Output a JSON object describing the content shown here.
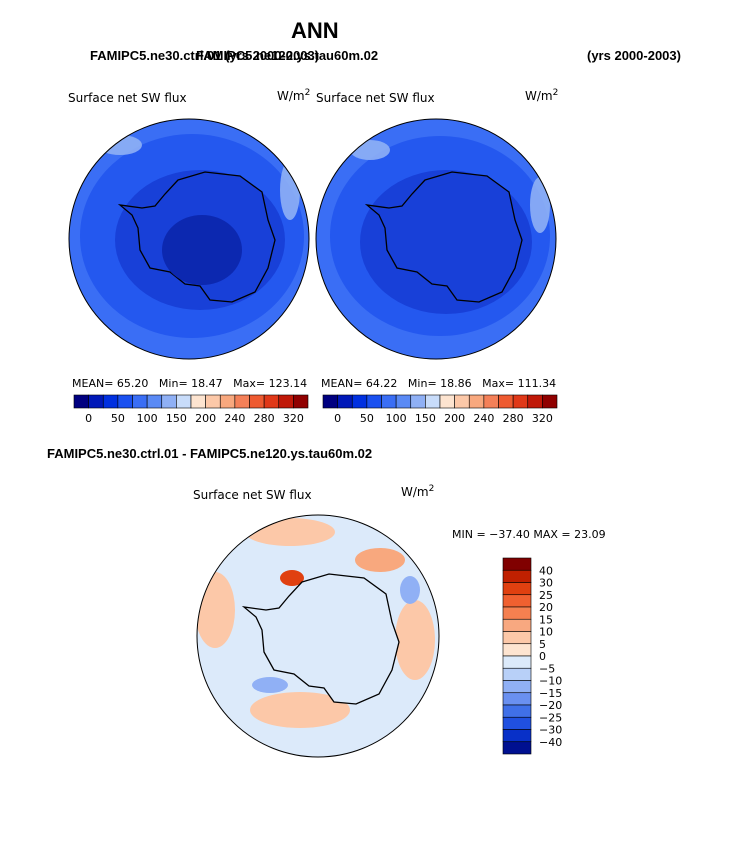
{
  "title": "ANN",
  "top_left_case": "FAMIPC5.ne30.ctrl.01",
  "top_left_years": "(yrs 2000-2003)",
  "top_right_case": "FAMIPC5.ne120.ys.tau60m.02",
  "top_right_years": "(yrs 2000-2003)",
  "diff_title": "FAMIPC5.ne30.ctrl.01 - FAMIPC5.ne120.ys.tau60m.02",
  "panels": [
    {
      "variable": "Surface net SW flux",
      "units_base": "W/m",
      "units_exp": "2",
      "stats": {
        "mean_label": "MEAN=",
        "mean": "65.20",
        "min_label": "Min=",
        "min": "18.47",
        "max_label": "Max=",
        "max": "123.14"
      }
    },
    {
      "variable": "Surface net SW flux",
      "units_base": "W/m",
      "units_exp": "2",
      "stats": {
        "mean_label": "MEAN=",
        "mean": "64.22",
        "min_label": "Min=",
        "min": "18.86",
        "max_label": "Max=",
        "max": "111.34"
      }
    },
    {
      "variable": "Surface net SW flux",
      "units_base": "W/m",
      "units_exp": "2",
      "stats_line": "MIN = −37.40  MAX =  23.09"
    }
  ],
  "colorbar_abs": {
    "colors": [
      "#000080",
      "#0018b8",
      "#0030e0",
      "#1a50f0",
      "#3a6ef5",
      "#5a8af5",
      "#8fb0f5",
      "#c8dcfa",
      "#fde4d0",
      "#fcc8a8",
      "#f8a87e",
      "#f48058",
      "#ee5a30",
      "#e03818",
      "#c01808",
      "#900000"
    ],
    "tick_labels": [
      "0",
      "50",
      "100",
      "150",
      "200",
      "240",
      "280",
      "320"
    ]
  },
  "colorbar_diff": {
    "colors": [
      "#800000",
      "#c02000",
      "#e04010",
      "#f06030",
      "#f58050",
      "#f8a880",
      "#fcc8a8",
      "#fde4d0",
      "#dceafa",
      "#b8d0f8",
      "#90b0f5",
      "#6a90f0",
      "#4070e8",
      "#2050e0",
      "#0830c8",
      "#001090"
    ],
    "tick_labels": [
      "40",
      "30",
      "25",
      "20",
      "15",
      "10",
      "5",
      "0",
      "−5",
      "−10",
      "−15",
      "−20",
      "−25",
      "−30",
      "−40"
    ]
  },
  "map_colors": {
    "outer": "#3a6ef5",
    "ring": "#2458ef",
    "inner": "#1840d8",
    "deep": "#0c28b0",
    "light_patch": "#8fb0f5",
    "diff_base": "#dceafa",
    "diff_warm": "#fcc8a8",
    "diff_warm2": "#f8a87e",
    "diff_hot": "#e04010",
    "diff_cool": "#90b0f5"
  }
}
